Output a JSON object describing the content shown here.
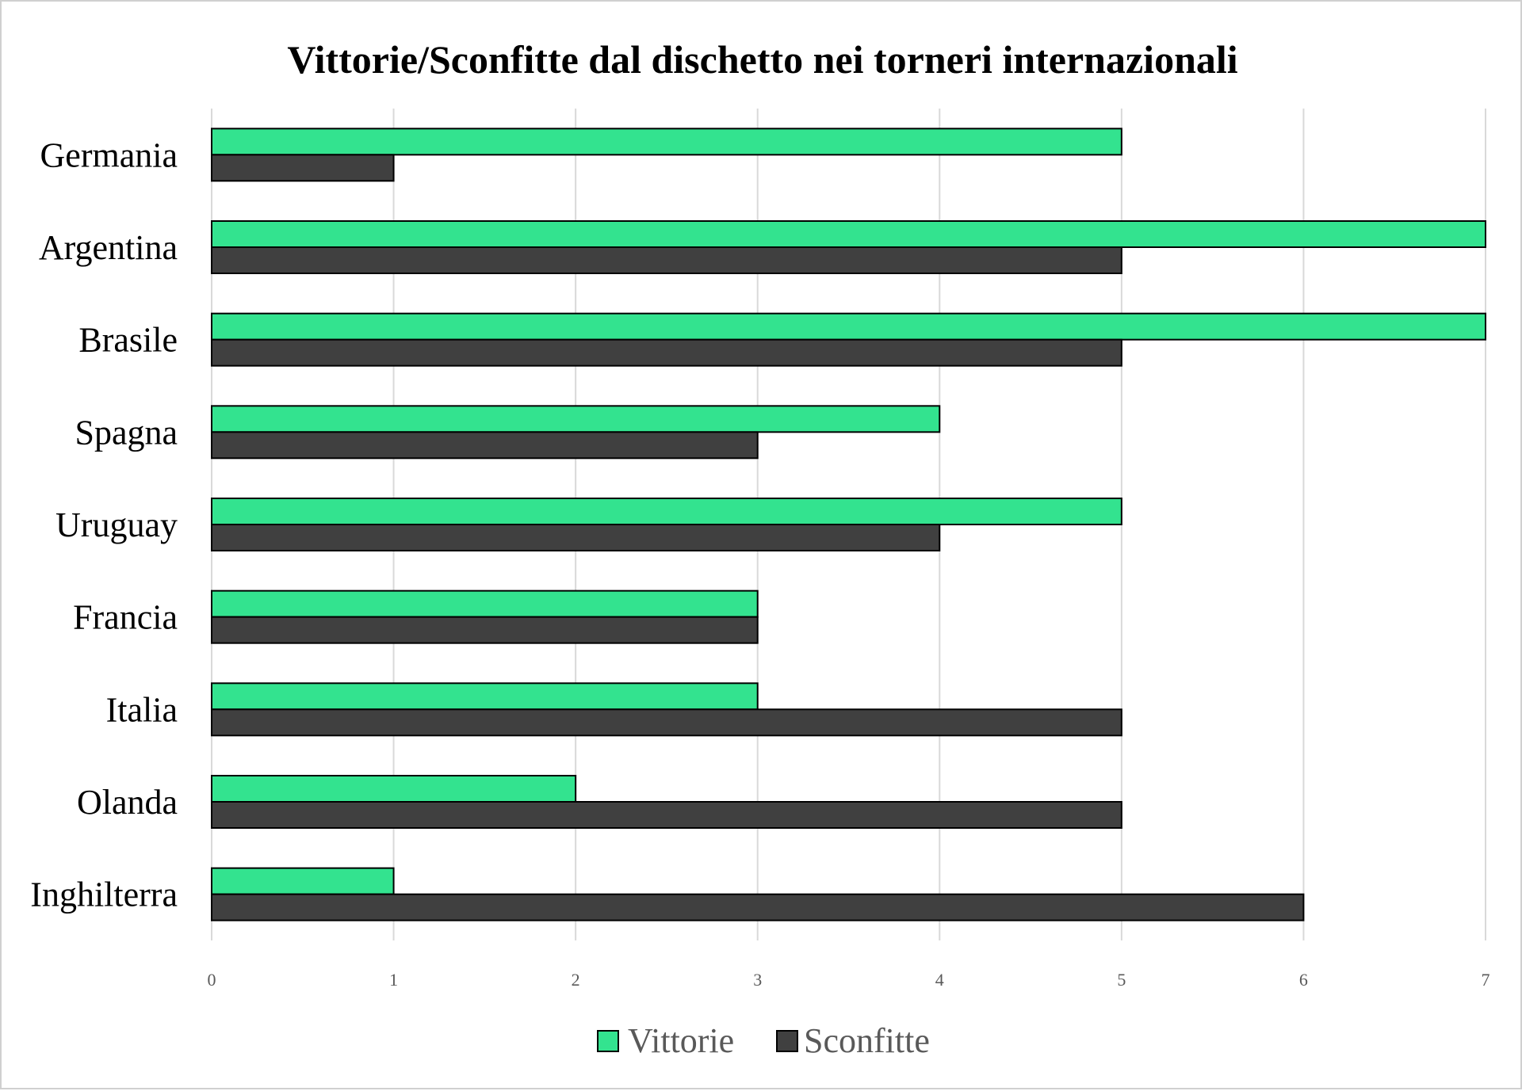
{
  "chart_data": {
    "type": "bar",
    "orientation": "horizontal",
    "title": "Vittorie/Sconfitte dal dischetto nei torneri internazionali",
    "categories": [
      "Germania",
      "Argentina",
      "Brasile",
      "Spagna",
      "Uruguay",
      "Francia",
      "Italia",
      "Olanda",
      "Inghilterra"
    ],
    "series": [
      {
        "name": "Vittorie",
        "color": "#33e38f",
        "values": [
          5,
          7,
          7,
          4,
          5,
          3,
          3,
          2,
          1
        ]
      },
      {
        "name": "Sconfitte",
        "color": "#404040",
        "values": [
          1,
          5,
          5,
          3,
          4,
          3,
          5,
          5,
          6
        ]
      }
    ],
    "xlim": [
      0,
      7
    ],
    "xticks": [
      "0",
      "1",
      "2",
      "3",
      "4",
      "5",
      "6",
      "7"
    ],
    "grid": "vertical",
    "legend": "bottom",
    "xlabel": "",
    "ylabel": ""
  }
}
